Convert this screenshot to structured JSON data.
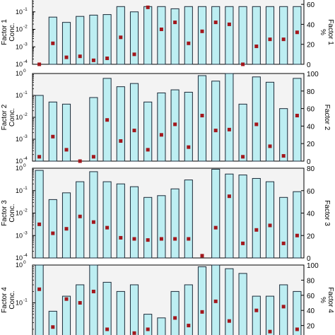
{
  "chart_data": [
    {
      "type": "bar",
      "ylabel_left": [
        "Factor 1",
        "Conc."
      ],
      "ylabel_right": [
        "Factor 1",
        "%"
      ],
      "left_axis": {
        "scale": "log",
        "ylim": [
          0.0001,
          1
        ],
        "ticks": [
          "10",
          "10",
          "10",
          "10"
        ],
        "exponents": [
          "-1",
          "-2",
          "-3",
          "-4"
        ],
        "tick_values": [
          0.1,
          0.01,
          0.001,
          0.0001
        ]
      },
      "right_axis": {
        "scale": "linear",
        "ylim": [
          0,
          70
        ],
        "ticks": [
          "0",
          "20",
          "40",
          "60"
        ],
        "tick_values": [
          0,
          20,
          40,
          60
        ]
      },
      "series": [
        {
          "kind": "bar",
          "values": [
            8e-05,
            0.05,
            0.025,
            0.055,
            0.065,
            0.07,
            0.2,
            0.1,
            0.2,
            0.2,
            0.15,
            0.2,
            0.2,
            0.2,
            0.2,
            0.2,
            0.2,
            0.2,
            0.2,
            0.2
          ]
        },
        {
          "kind": "marker",
          "values": [
            0,
            21,
            7,
            8,
            4,
            6,
            27,
            10,
            57,
            35,
            42,
            21,
            33,
            42,
            40,
            0,
            18,
            25,
            25,
            32
          ]
        }
      ],
      "grid": false
    },
    {
      "type": "bar",
      "ylabel_left": [
        "Factor 2",
        "Conc."
      ],
      "ylabel_right": [
        "Factor 2"
      ],
      "left_axis": {
        "scale": "log",
        "ylim": [
          0.0001,
          1
        ],
        "ticks": [
          "10",
          "10",
          "10",
          "10",
          "10"
        ],
        "exponents": [
          "0",
          "-1",
          "-2",
          "-3",
          "-4"
        ],
        "tick_values": [
          1,
          0.1,
          0.01,
          0.001,
          0.0001
        ]
      },
      "right_axis": {
        "scale": "linear",
        "ylim": [
          0,
          100
        ],
        "ticks": [
          "0",
          "20",
          "40",
          "60",
          "80",
          "100"
        ],
        "tick_values": [
          0,
          20,
          40,
          60,
          80,
          100
        ]
      },
      "series": [
        {
          "kind": "bar",
          "values": [
            0.1,
            0.05,
            0.04,
            8e-05,
            0.08,
            0.6,
            0.25,
            0.35,
            0.05,
            0.13,
            0.18,
            0.14,
            0.8,
            0.45,
            1.1,
            0.04,
            0.7,
            0.4,
            0.025,
            0.6
          ]
        },
        {
          "kind": "marker",
          "values": [
            5,
            28,
            13,
            0,
            5,
            47,
            23,
            35,
            13,
            30,
            42,
            16,
            52,
            35,
            36,
            5,
            42,
            17,
            6,
            52
          ]
        }
      ],
      "grid": false
    },
    {
      "type": "bar",
      "ylabel_left": [
        "Factor 3",
        "Conc."
      ],
      "ylabel_right": [
        "Factor 3"
      ],
      "left_axis": {
        "scale": "log",
        "ylim": [
          0.0001,
          1
        ],
        "ticks": [
          "10",
          "10",
          "10",
          "10",
          "10"
        ],
        "exponents": [
          "0",
          "-1",
          "-2",
          "-3",
          "-4"
        ],
        "tick_values": [
          1,
          0.1,
          0.01,
          0.001,
          0.0001
        ]
      },
      "right_axis": {
        "scale": "linear",
        "ylim": [
          0,
          80
        ],
        "ticks": [
          "0",
          "20",
          "40",
          "60",
          "80"
        ],
        "tick_values": [
          0,
          20,
          40,
          60,
          80
        ]
      },
      "series": [
        {
          "kind": "bar",
          "values": [
            0.8,
            0.04,
            0.08,
            0.25,
            0.7,
            0.25,
            0.2,
            0.15,
            0.05,
            0.06,
            0.12,
            0.3,
            8e-05,
            0.9,
            0.55,
            0.5,
            0.35,
            0.25,
            0.05,
            0.09
          ]
        },
        {
          "kind": "marker",
          "values": [
            30,
            22,
            26,
            37,
            32,
            27,
            18,
            17,
            16,
            17,
            17,
            17,
            2,
            27,
            55,
            13,
            25,
            29,
            13,
            20
          ]
        }
      ],
      "grid": false
    },
    {
      "type": "bar",
      "ylabel_left": [
        "Factor 4",
        "Conc."
      ],
      "ylabel_right": [
        "Factor 4",
        "%"
      ],
      "left_axis": {
        "scale": "log",
        "ylim": [
          0.01,
          1
        ],
        "ticks": [
          "10",
          "10"
        ],
        "exponents": [
          "0",
          "-1"
        ],
        "tick_values": [
          1,
          0.1
        ]
      },
      "right_axis": {
        "scale": "linear",
        "ylim": [
          0,
          100
        ],
        "ticks": [
          "20",
          "40",
          "60",
          "80",
          "100"
        ],
        "tick_values": [
          20,
          40,
          60,
          80,
          100
        ]
      },
      "series": [
        {
          "kind": "bar",
          "values": [
            1.8,
            0.06,
            0.15,
            0.3,
            1.3,
            0.35,
            0.2,
            0.3,
            0.05,
            0.04,
            0.2,
            0.3,
            0.9,
            2,
            0.8,
            0.6,
            0.15,
            0.15,
            0.3,
            0.2
          ]
        },
        {
          "kind": "marker",
          "values": [
            68,
            18,
            55,
            50,
            65,
            15,
            5,
            10,
            15,
            5,
            30,
            20,
            38,
            52,
            26,
            5,
            40,
            12,
            45,
            15
          ]
        }
      ],
      "grid": false
    }
  ],
  "colors": {
    "bar_fill": "#bdeef2",
    "bar_stroke": "#1b2a38",
    "marker": "#a3171c",
    "panel_bg": "#f3f3f3"
  }
}
